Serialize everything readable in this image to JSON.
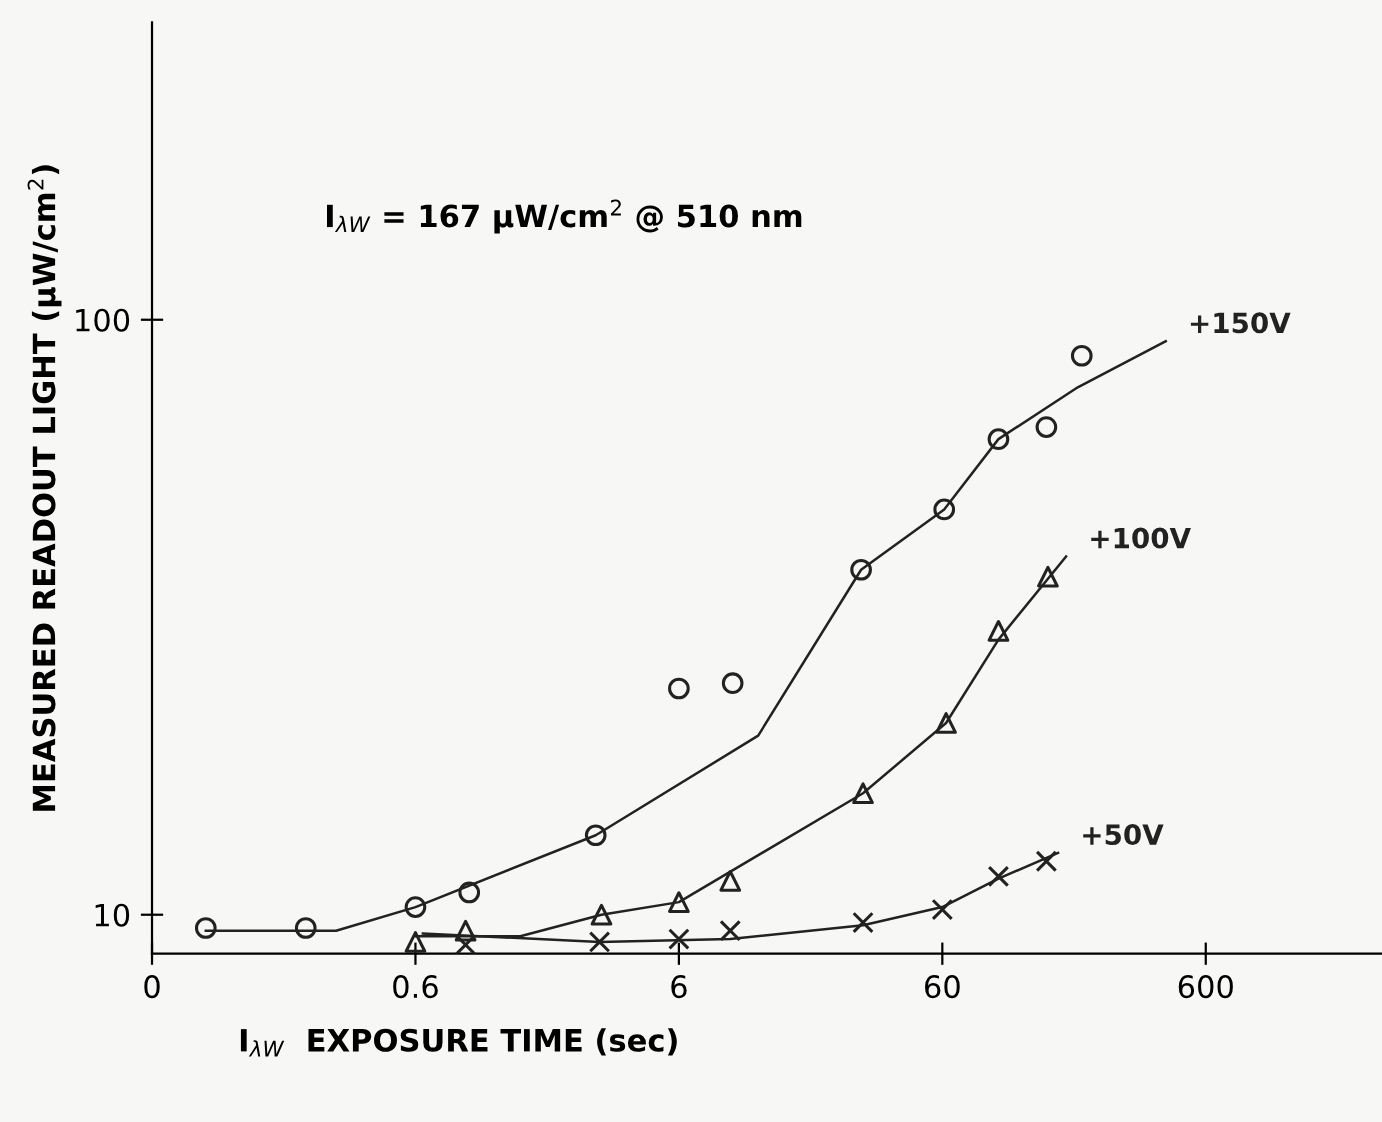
{
  "chart_data": {
    "type": "scatter",
    "xlabel": "I$_{λW}$  EXPOSURE TIME (sec)",
    "ylabel": "MEASURED READOUT LIGHT (μW/cm$^{2}$)",
    "annotations": [
      "I$_{λW}$ = 167 μW/cm$^{2}$ @ 510 nm"
    ],
    "log": "xy",
    "xlim": [
      0.06,
      2800
    ],
    "ylim": [
      8.6,
      316
    ],
    "xticks": [
      {
        "value": 0.06,
        "label": "0"
      },
      0.6,
      6,
      60,
      600
    ],
    "yticks": [
      10,
      100
    ],
    "grid": false,
    "legend": false,
    "series": [
      {
        "marker": "circle",
        "color": "#222222",
        "x": [
          0.096,
          0.23,
          0.6,
          0.96,
          2.9,
          6,
          9.6,
          29.5,
          61,
          98,
          149,
          203
        ],
        "values": [
          9.5,
          9.5,
          10.3,
          10.9,
          13.6,
          24,
          24.5,
          38,
          48,
          63,
          66,
          87
        ]
      },
      {
        "marker": "triangle",
        "color": "#222222",
        "x": [
          0.6,
          0.93,
          3.05,
          6,
          9.4,
          30,
          62,
          98,
          151
        ],
        "values": [
          9.0,
          9.4,
          10,
          10.5,
          11.4,
          16,
          21,
          30,
          37
        ]
      },
      {
        "marker": "cross",
        "color": "#222222",
        "x": [
          0.93,
          3.0,
          6,
          9.4,
          30,
          60,
          98,
          149
        ],
        "values": [
          8.9,
          9.0,
          9.1,
          9.4,
          9.7,
          10.2,
          11.6,
          12.3
        ]
      },
      {
        "type": "line",
        "name": "+150V",
        "color": "#222222",
        "line_style": "solid",
        "marker": "none",
        "x": [
          0.096,
          0.3,
          0.6,
          2.9,
          12,
          29.5,
          61,
          98,
          196,
          423
        ],
        "values": [
          9.4,
          9.4,
          10.3,
          13.6,
          20,
          38,
          48,
          63,
          77,
          92
        ]
      },
      {
        "type": "line",
        "name": "+100V",
        "color": "#222222",
        "line_style": "solid",
        "marker": "none",
        "x": [
          0.6,
          1.5,
          3.05,
          6,
          30,
          62,
          98,
          177
        ],
        "values": [
          9.2,
          9.2,
          10,
          10.5,
          16,
          21,
          29,
          40
        ]
      },
      {
        "type": "line",
        "name": "+50V",
        "color": "#222222",
        "line_style": "solid",
        "marker": "none",
        "x": [
          0.64,
          3,
          9.4,
          30,
          60,
          98,
          165
        ],
        "values": [
          9.3,
          9.0,
          9.1,
          9.6,
          10.3,
          11.5,
          12.7
        ]
      }
    ]
  }
}
